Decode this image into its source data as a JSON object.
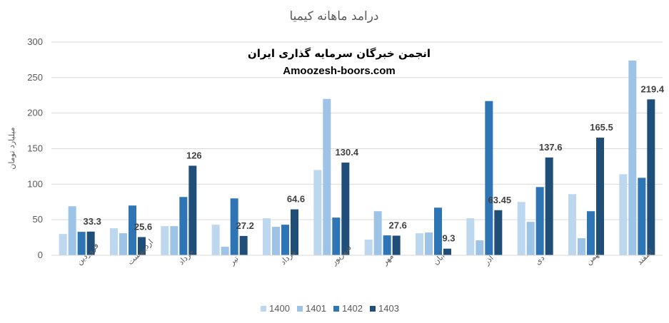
{
  "chart_data": {
    "type": "bar",
    "title": "درامد ماهانه کیمیا",
    "watermark": {
      "line1": "انجمن خبرگان سرمایه گذاری ایران",
      "line2": "Amoozesh-boors.com"
    },
    "ylabel": "میلیارد تومان",
    "xlabel": "",
    "ylim": [
      0,
      300
    ],
    "yticks": [
      "0",
      "50",
      "100",
      "150",
      "200",
      "250",
      "300"
    ],
    "grid": true,
    "legend_position": "bottom",
    "categories": [
      "فروردین",
      "اردیبهشت",
      "خرداد",
      "تیر",
      "مرداد",
      "شهریور",
      "مهر",
      "آبان",
      "آذر",
      "دی",
      "بهمن",
      "اسفند"
    ],
    "series": [
      {
        "name": "1400",
        "color": "#bdd7ee",
        "values": [
          30,
          38,
          41,
          43,
          52,
          120,
          22,
          31,
          52,
          75,
          86,
          114
        ]
      },
      {
        "name": "1401",
        "color": "#9dc3e6",
        "values": [
          69,
          31,
          41,
          12,
          40,
          220,
          62,
          32,
          21,
          47,
          24,
          274
        ]
      },
      {
        "name": "1402",
        "color": "#2e75b6",
        "values": [
          33,
          70,
          82,
          80,
          43,
          53,
          28,
          67,
          217,
          96,
          62,
          109
        ]
      },
      {
        "name": "1403",
        "color": "#1f4e79",
        "values": [
          33.3,
          25.6,
          126,
          27.2,
          64.6,
          130.4,
          27.6,
          9.3,
          63.45,
          137.6,
          165.5,
          219.4
        ]
      }
    ],
    "data_labels": {
      "series": "1403",
      "labels": [
        "33.3",
        "25.6",
        "126",
        "27.2",
        "64.6",
        "130.4",
        "27.6",
        "9.3",
        "63.45",
        "137.6",
        "165.5",
        "219.4"
      ]
    }
  }
}
